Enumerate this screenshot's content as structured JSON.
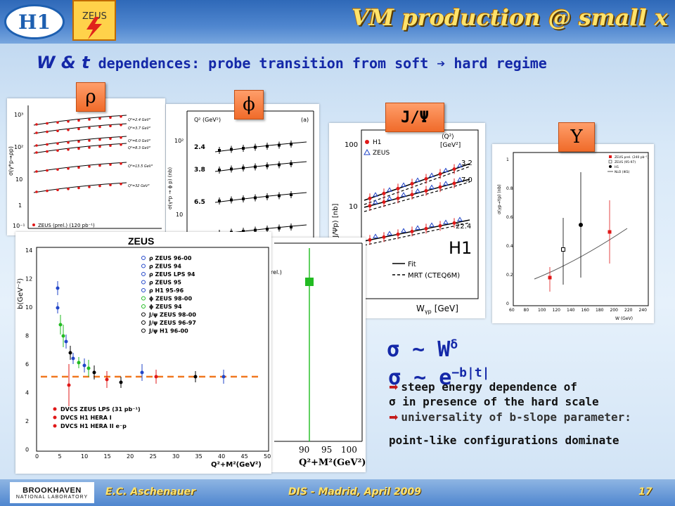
{
  "header": {
    "title": "VM production @ small x",
    "h1_logo_text": "H1",
    "zeus_logo_text": "ZEUS"
  },
  "subtitle": {
    "vars": "W & t",
    "text": "dependences: probe transition from soft  hard regime"
  },
  "tags": {
    "rho": "ρ",
    "phi": "ϕ",
    "jpsi": "J/Ψ",
    "upsilon": "Υ"
  },
  "formulas": {
    "sigma_w": "σ ~ W",
    "sigma_w_exp": "δ",
    "sigma_t": "σ ~ e",
    "sigma_t_exp": "−b|t|"
  },
  "bullets": {
    "b1_line1": "steep energy dependence of",
    "b1_line2": "σ in presence of the hard scale",
    "b2_line1": "universality of b-slope parameter:",
    "b2_line2": "point-like configurations dominate"
  },
  "footer": {
    "author": "E.C. Aschenauer",
    "event": "DIS - Madrid, April 2009",
    "page": "17",
    "bnl_line1": "BROOKHAVEN",
    "bnl_line2": "NATIONAL LABORATORY"
  },
  "colors": {
    "title": "#ffe36b",
    "subtitle": "#1428a8",
    "tag": "#f06b2a"
  },
  "plots": {
    "rho": {
      "y_ticks": [
        "10³",
        "10²",
        "10",
        "1",
        "10⁻¹"
      ],
      "q2_labels": [
        "Q²=2.4 GeV²",
        "Q²=3.7 GeV²",
        "Q²=6.0 GeV²",
        "Q²=8.3 GeV²",
        "Q²=13.5 GeV²",
        "Q²=32 GeV²"
      ],
      "legend": "ZEUS (prel.) (120 pb⁻¹)",
      "ylabel": "σ(γ*p→ρp)"
    },
    "phi": {
      "q2_header": "Q² (GeV²)",
      "panel_letter": "(a)",
      "q2_values": [
        "2.4",
        "3.8",
        "6.5"
      ],
      "y_ticks": [
        "10²",
        "10"
      ],
      "ylabel": "σ(γ*p → ϕ p) (nb)"
    },
    "jpsi": {
      "legend_h1": "H1",
      "legend_zeus": "ZEUS",
      "q2_header_1": "⟨Q²⟩",
      "q2_header_2": "[GeV²]",
      "q2_values": [
        "3.2",
        "7.0",
        "22.4"
      ],
      "y_ticks": [
        "100",
        "10"
      ],
      "ylabel": "σ(γp → J/Ψp) [nb]",
      "xlabel": "W",
      "xlabel_sub": "γp",
      "xlabel_unit": "[GeV]",
      "big_label": "H1",
      "fit_label": "Fit",
      "mrt_label": "MRT (CTEQ6M)"
    },
    "upsilon": {
      "ylabel": "σ(γp→Υp) (nb)",
      "xlabel": "W (GeV)",
      "y_ticks": [
        "1",
        "0.8",
        "0.6",
        "0.4",
        "0.2",
        "0"
      ],
      "x_ticks": [
        "60",
        "80",
        "100",
        "120",
        "140",
        "160",
        "180",
        "200",
        "220",
        "240"
      ],
      "legend": [
        "ZEUS prel. (240 pb⁻¹)",
        "ZEUS (95-97)",
        "H1",
        "NLO (IKS)"
      ]
    },
    "bslope": {
      "title": "ZEUS",
      "ylabel": "b(GeV⁻²)",
      "xlabel": "Q²+M²(GeV²)",
      "y_ticks": [
        "14",
        "12",
        "10",
        "8",
        "6",
        "4",
        "2",
        "0"
      ],
      "x_ticks": [
        "0",
        "5",
        "10",
        "15",
        "20",
        "25",
        "30",
        "35",
        "40",
        "45",
        "50"
      ],
      "legend_top": [
        "ρ ZEUS 96-00",
        "ρ ZEUS 94",
        "ρ ZEUS LPS 94",
        "ρ ZEUS 95",
        "ρ H1 95-96",
        "ϕ ZEUS 98-00",
        "ϕ ZEUS 94",
        "J/ψ ZEUS 98-00",
        "J/ψ ZEUS 96-97",
        "J/ψ H1 96-00"
      ],
      "legend_bottom": [
        "DVCS ZEUS LPS (31 pb⁻¹)",
        "DVCS H1 HERA I",
        "DVCS H1 HERA II e⁻p"
      ]
    },
    "partial": {
      "x_ticks": [
        "90",
        "95",
        "100"
      ],
      "xlabel": "Q²+M²(GeV²)",
      "fragment": "rel.)"
    }
  }
}
